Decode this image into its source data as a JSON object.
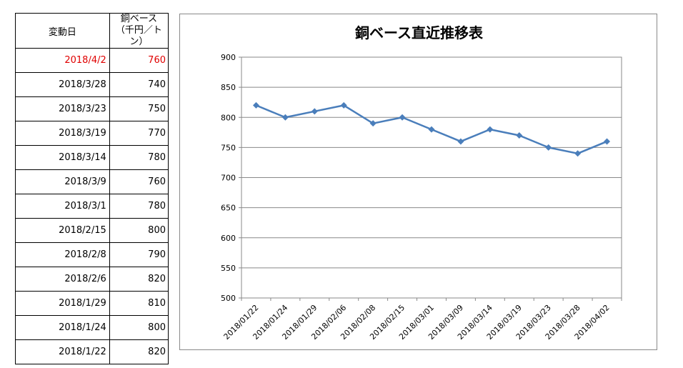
{
  "table": {
    "header_date": "変動日",
    "header_value_line1": "銅ベース",
    "header_value_line2": "（千円／トン）",
    "rows": [
      {
        "date": "2018/4/2",
        "value": "760",
        "highlight": true
      },
      {
        "date": "2018/3/28",
        "value": "740"
      },
      {
        "date": "2018/3/23",
        "value": "750"
      },
      {
        "date": "2018/3/19",
        "value": "770"
      },
      {
        "date": "2018/3/14",
        "value": "780"
      },
      {
        "date": "2018/3/9",
        "value": "760"
      },
      {
        "date": "2018/3/1",
        "value": "780"
      },
      {
        "date": "2018/2/15",
        "value": "800"
      },
      {
        "date": "2018/2/8",
        "value": "790"
      },
      {
        "date": "2018/2/6",
        "value": "820"
      },
      {
        "date": "2018/1/29",
        "value": "810"
      },
      {
        "date": "2018/1/24",
        "value": "800"
      },
      {
        "date": "2018/1/22",
        "value": "820"
      }
    ],
    "highlight_color": "#e00000"
  },
  "chart_data": {
    "type": "line",
    "title": "銅ベース直近推移表",
    "xlabel": "",
    "ylabel": "",
    "categories": [
      "2018/01/22",
      "2018/01/24",
      "2018/01/29",
      "2018/02/06",
      "2018/02/08",
      "2018/02/15",
      "2018/03/01",
      "2018/03/09",
      "2018/03/14",
      "2018/03/19",
      "2018/03/23",
      "2018/03/28",
      "2018/04/02"
    ],
    "series": [
      {
        "values": [
          820,
          800,
          810,
          820,
          790,
          800,
          780,
          760,
          780,
          770,
          750,
          740,
          760
        ],
        "color": "#4a7ebb"
      }
    ],
    "ylim": [
      500,
      900
    ],
    "yticks": [
      500,
      550,
      600,
      650,
      700,
      750,
      800,
      850,
      900
    ],
    "grid": true,
    "marker": "diamond",
    "legend": "none"
  }
}
